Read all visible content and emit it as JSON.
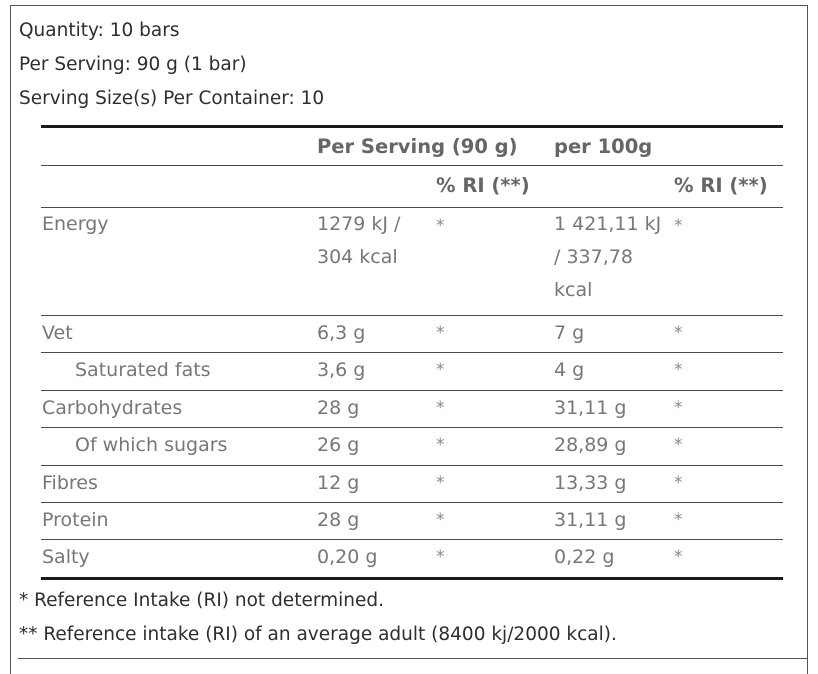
{
  "summary": {
    "quantity": "Quantity: 10 bars",
    "per_serving": "Per Serving: 90 g (1 bar)",
    "servings_per_container": "Serving Size(s) Per Container: 10"
  },
  "table": {
    "header": {
      "per_serving": "Per Serving (90 g)",
      "per_100g": "per 100g",
      "ri_serving": "% RI (**)",
      "ri_100g": "% RI (**)"
    },
    "rows": [
      {
        "name": "Energy",
        "per_serving": "1279 kJ / 304 kcal",
        "ri_serving": "*",
        "per_100g": "1 421,11 kJ / 337,78 kcal",
        "ri_100g": "*"
      },
      {
        "name": "Vet",
        "per_serving": "6,3 g",
        "ri_serving": "*",
        "per_100g": "7 g",
        "ri_100g": "*"
      },
      {
        "name": "Saturated fats",
        "per_serving": "3,6 g",
        "ri_serving": "*",
        "per_100g": "4 g",
        "ri_100g": "*"
      },
      {
        "name": "Carbohydrates",
        "per_serving": "28 g",
        "ri_serving": "*",
        "per_100g": "31,11 g",
        "ri_100g": "*"
      },
      {
        "name": "Of which sugars",
        "per_serving": "26 g",
        "ri_serving": "*",
        "per_100g": "28,89 g",
        "ri_100g": "*"
      },
      {
        "name": "Fibres",
        "per_serving": "12 g",
        "ri_serving": "*",
        "per_100g": "13,33 g",
        "ri_100g": "*"
      },
      {
        "name": "Protein",
        "per_serving": "28 g",
        "ri_serving": "*",
        "per_100g": "31,11 g",
        "ri_100g": "*"
      },
      {
        "name": "Salty",
        "per_serving": "0,20 g",
        "ri_serving": "*",
        "per_100g": "0,22 g",
        "ri_100g": "*"
      }
    ]
  },
  "footnotes": {
    "note1": "* Reference Intake (RI) not determined.",
    "note2": "** Reference intake (RI) of an average adult (8400 kj/2000 kcal)."
  }
}
